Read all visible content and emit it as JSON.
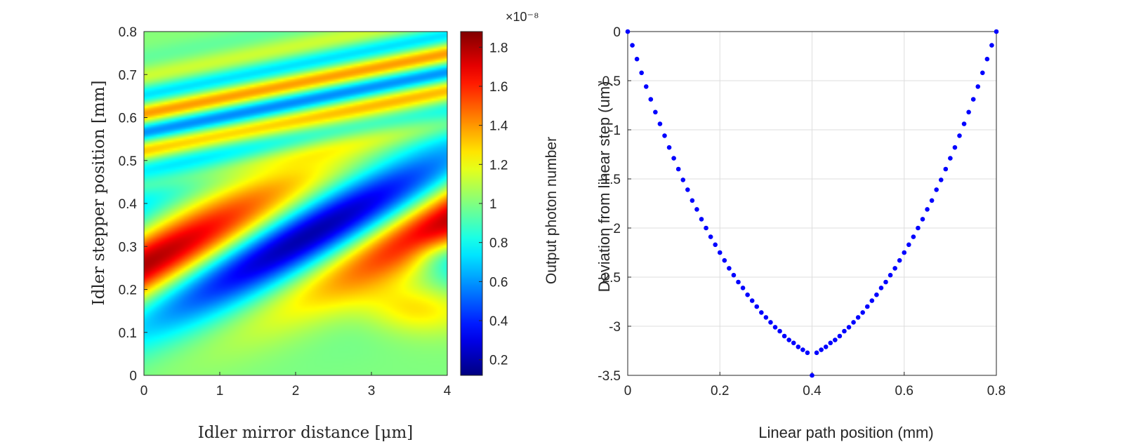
{
  "chart_data": [
    {
      "type": "heatmap",
      "xlabel": "Idler mirror distance [μm]",
      "ylabel": "Idler stepper position [mm]",
      "xlim": [
        0,
        4
      ],
      "ylim": [
        0,
        0.8
      ],
      "x_ticks": [
        "0",
        "1",
        "2",
        "3",
        "4"
      ],
      "y_ticks": [
        "0",
        "0.1",
        "0.2",
        "0.3",
        "0.4",
        "0.5",
        "0.6",
        "0.7",
        "0.8"
      ],
      "colormap": "jet",
      "colorbar": {
        "label": "Output photon number",
        "exponent": "×10⁻⁸",
        "range": [
          0.12,
          1.88
        ],
        "ticks": [
          "0.2",
          "0.4",
          "0.6",
          "0.8",
          "1",
          "1.2",
          "1.4",
          "1.6",
          "1.8"
        ]
      }
    },
    {
      "type": "scatter",
      "title": "",
      "xlabel": "Linear path position (mm)",
      "ylabel": "Deviation from linear step (um)",
      "xlim": [
        0,
        0.8
      ],
      "ylim": [
        -3.5,
        0
      ],
      "x_ticks": [
        "0",
        "0.2",
        "0.4",
        "0.6",
        "0.8"
      ],
      "y_ticks": [
        "0",
        "-0.5",
        "-1",
        "-1.5",
        "-2",
        "-2.5",
        "-3",
        "-3.5"
      ],
      "grid": true,
      "marker_color": "#0000ff",
      "series": [
        {
          "name": "deviation",
          "x": [
            0,
            0.01,
            0.02,
            0.03,
            0.04,
            0.05,
            0.06,
            0.07,
            0.08,
            0.09,
            0.1,
            0.11,
            0.12,
            0.13,
            0.14,
            0.15,
            0.16,
            0.17,
            0.18,
            0.19,
            0.2,
            0.21,
            0.22,
            0.23,
            0.24,
            0.25,
            0.26,
            0.27,
            0.28,
            0.29,
            0.3,
            0.31,
            0.32,
            0.33,
            0.34,
            0.35,
            0.36,
            0.37,
            0.38,
            0.39,
            0.4,
            0.41,
            0.42,
            0.43,
            0.44,
            0.45,
            0.46,
            0.47,
            0.48,
            0.49,
            0.5,
            0.51,
            0.52,
            0.53,
            0.54,
            0.55,
            0.56,
            0.57,
            0.58,
            0.59,
            0.6,
            0.61,
            0.62,
            0.63,
            0.64,
            0.65,
            0.66,
            0.67,
            0.68,
            0.69,
            0.7,
            0.71,
            0.72,
            0.73,
            0.74,
            0.75,
            0.76,
            0.77,
            0.78,
            0.79,
            0.8
          ],
          "y": [
            0,
            -0.14,
            -0.28,
            -0.42,
            -0.56,
            -0.69,
            -0.82,
            -0.94,
            -1.06,
            -1.18,
            -1.29,
            -1.4,
            -1.51,
            -1.61,
            -1.72,
            -1.81,
            -1.91,
            -2.0,
            -2.09,
            -2.17,
            -2.25,
            -2.33,
            -2.41,
            -2.48,
            -2.55,
            -2.61,
            -2.68,
            -2.74,
            -2.8,
            -2.86,
            -2.91,
            -2.96,
            -3.01,
            -3.05,
            -3.1,
            -3.14,
            -3.17,
            -3.21,
            -3.24,
            -3.27,
            -3.5,
            -3.27,
            -3.24,
            -3.21,
            -3.17,
            -3.14,
            -3.1,
            -3.05,
            -3.01,
            -2.96,
            -2.91,
            -2.86,
            -2.8,
            -2.74,
            -2.68,
            -2.61,
            -2.55,
            -2.48,
            -2.41,
            -2.33,
            -2.25,
            -2.17,
            -2.09,
            -2.0,
            -1.91,
            -1.81,
            -1.72,
            -1.61,
            -1.51,
            -1.4,
            -1.29,
            -1.18,
            -1.06,
            -0.94,
            -0.82,
            -0.69,
            -0.56,
            -0.42,
            -0.28,
            -0.14,
            0
          ]
        }
      ]
    }
  ]
}
